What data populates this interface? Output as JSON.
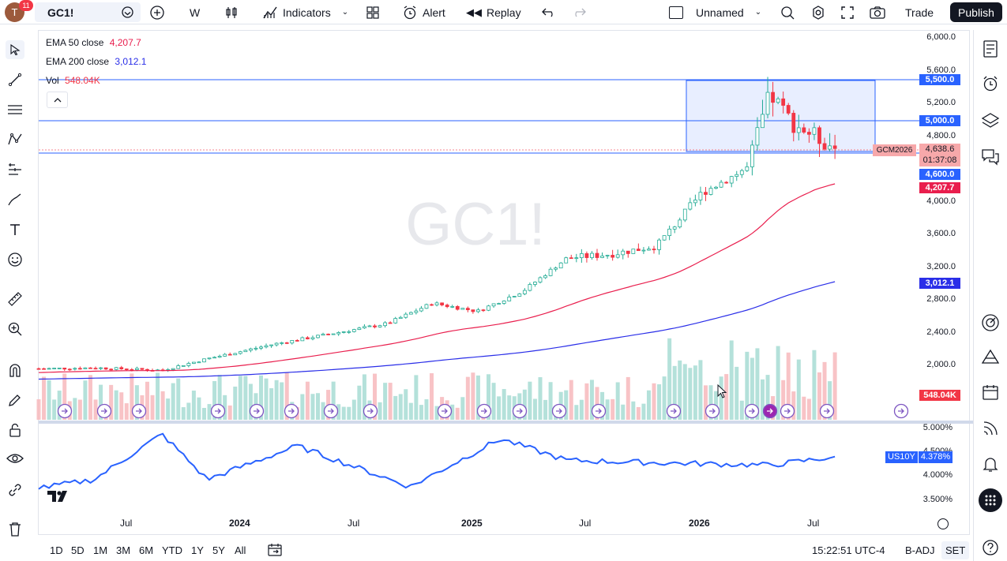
{
  "topbar": {
    "avatar_letter": "T",
    "notification_count": "11",
    "symbol": "GC1!",
    "interval": "W",
    "indicators_label": "Indicators",
    "alert_label": "Alert",
    "replay_label": "Replay",
    "layout_name": "Unnamed",
    "trade_label": "Trade",
    "publish_label": "Publish"
  },
  "legend": {
    "ema50_label": "EMA 50 close",
    "ema50_value": "4,207.7",
    "ema200_label": "EMA 200 close",
    "ema200_value": "3,012.1",
    "vol_label": "Vol",
    "vol_value": "548.04K"
  },
  "watermark": "GC1!",
  "price_axis": {
    "labels": [
      "6,000.0",
      "5,600.0",
      "5,200.0",
      "4,800.0",
      "4,000.0",
      "3,600.0",
      "3,200.0",
      "2,800.0",
      "2,400.0",
      "2,000.0"
    ],
    "tags": {
      "level_5500": "5,500.0",
      "level_5000": "5,000.0",
      "contract": "GCM2026",
      "last_price": "4,638.6",
      "countdown": "01:37:08",
      "level_4600": "4,600.0",
      "ema50": "4,207.7",
      "ema200": "3,012.1",
      "volume": "548.04K"
    }
  },
  "lower_pane": {
    "symbol": "US10Y",
    "value": "4.378%",
    "axis_labels": [
      "5.000%",
      "4.500%",
      "4.000%",
      "3.500%"
    ]
  },
  "time_axis": [
    "Jul",
    "2024",
    "Jul",
    "2025",
    "Jul",
    "2026",
    "Jul"
  ],
  "bottombar": {
    "ranges": [
      "1D",
      "5D",
      "1M",
      "3M",
      "6M",
      "YTD",
      "1Y",
      "5Y",
      "All"
    ],
    "clock": "15:22:51 UTC-4",
    "badj": "B-ADJ",
    "set": "SET"
  },
  "colors": {
    "up_candle": "#22ab94",
    "down_candle": "#f23645",
    "ema50": "#e91e4d",
    "ema200": "#2a2ee8",
    "us10y": "#2962ff",
    "accent_blue": "#2962ff"
  },
  "chart_data": [
    {
      "type": "candlestick",
      "title": "GC1!",
      "interval": "W",
      "ylim": [
        1800,
        6100
      ],
      "y_scale": "log",
      "x_range": [
        "2023-05",
        "2026-08"
      ],
      "approx_close_path": [
        {
          "x": "2023-05",
          "close": 1950
        },
        {
          "x": "2023-07",
          "close": 1960
        },
        {
          "x": "2023-10",
          "close": 1930
        },
        {
          "x": "2023-12",
          "close": 2070
        },
        {
          "x": "2024-03",
          "close": 2250
        },
        {
          "x": "2024-05",
          "close": 2350
        },
        {
          "x": "2024-08",
          "close": 2500
        },
        {
          "x": "2024-10",
          "close": 2750
        },
        {
          "x": "2024-12",
          "close": 2650
        },
        {
          "x": "2025-02",
          "close": 2900
        },
        {
          "x": "2025-04",
          "close": 3300
        },
        {
          "x": "2025-06",
          "close": 3350
        },
        {
          "x": "2025-08",
          "close": 3450
        },
        {
          "x": "2025-10",
          "close": 4100
        },
        {
          "x": "2025-12",
          "close": 4400
        },
        {
          "x": "2026-01",
          "close": 5300
        },
        {
          "x": "2026-02",
          "close": 4950
        },
        {
          "x": "2026-04",
          "close": 4638.6
        }
      ],
      "last_close": 4638.6,
      "ema50_last": 4207.7,
      "ema200_last": 3012.1,
      "horizontal_levels": [
        5500,
        5000,
        4600
      ],
      "highlight_range": {
        "from_price": 4650,
        "to_price": 5500,
        "start": "2025-12",
        "end": "2026-06"
      }
    },
    {
      "type": "line",
      "name": "US10Y",
      "ylim": [
        3.3,
        5.1
      ],
      "approx_path": [
        {
          "x": "2023-05",
          "y": 3.75
        },
        {
          "x": "2023-07",
          "y": 3.9
        },
        {
          "x": "2023-10",
          "y": 4.85
        },
        {
          "x": "2023-12",
          "y": 3.9
        },
        {
          "x": "2024-04",
          "y": 4.6
        },
        {
          "x": "2024-09",
          "y": 3.75
        },
        {
          "x": "2025-01",
          "y": 4.75
        },
        {
          "x": "2025-04",
          "y": 4.3
        },
        {
          "x": "2025-08",
          "y": 4.25
        },
        {
          "x": "2026-01",
          "y": 4.2
        },
        {
          "x": "2026-04",
          "y": 4.378
        }
      ],
      "last_value": 4.378
    }
  ]
}
